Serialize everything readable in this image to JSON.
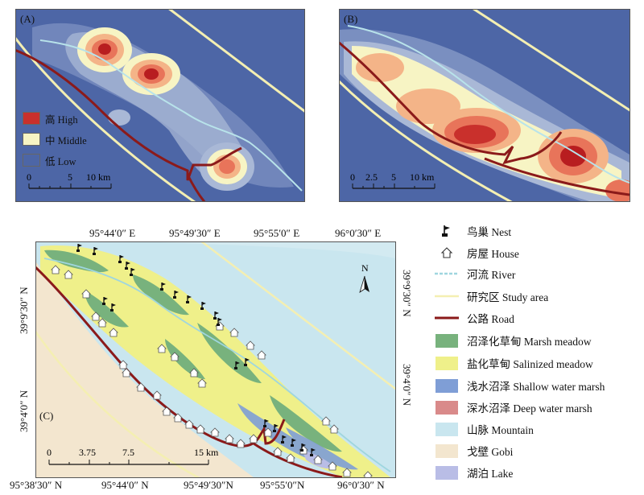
{
  "panels": {
    "a": {
      "label": "(A)",
      "legend": [
        {
          "label": "高 High",
          "color": "#c9302c"
        },
        {
          "label": "中 Middle",
          "color": "#f7f4c4"
        },
        {
          "label": "低 Low",
          "color": "#4d66a6"
        }
      ],
      "scalebar": {
        "ticks": [
          "0",
          "5",
          "10 km"
        ]
      }
    },
    "b": {
      "label": "(B)",
      "scalebar": {
        "ticks": [
          "0",
          "2.5",
          "5",
          "10 km"
        ]
      }
    },
    "c": {
      "label": "(C)",
      "scalebar": {
        "ticks": [
          "0",
          "3.75",
          "7.5",
          "15 km"
        ]
      },
      "north": "N",
      "top_coords": [
        "95°44′0″ E",
        "95°49′30″ E",
        "95°55′0″ E",
        "96°0′30″ E"
      ],
      "bottom_coords": [
        "95°38′30″ N",
        "95°44′0″ N",
        "95°49′30″N",
        "95°55′0″N",
        "96°0′30″ N"
      ],
      "left_coords": [
        "39°9′30″ N",
        "39°4′0″ N"
      ],
      "right_coords": [
        "39°9′30″ N",
        "39°4′0″ N"
      ]
    }
  },
  "legend": [
    {
      "label": "鸟巢 Nest",
      "symbol": "nest-icon"
    },
    {
      "label": "房屋 House",
      "symbol": "house-icon"
    },
    {
      "label": "河流 River",
      "symbol": "river-line",
      "color": "#9fd6df"
    },
    {
      "label": "研究区 Study area",
      "symbol": "study-area-line",
      "color": "#f4efb2"
    },
    {
      "label": "公路 Road",
      "symbol": "road-line",
      "color": "#8b1a1a"
    },
    {
      "label": "沼泽化草甸 Marsh meadow",
      "symbol": "swatch",
      "color": "#78b27d"
    },
    {
      "label": "盐化草甸 Salinized meadow",
      "symbol": "swatch",
      "color": "#eff08a"
    },
    {
      "label": "浅水沼泽 Shallow water marsh",
      "symbol": "swatch",
      "color": "#7f9ed6"
    },
    {
      "label": "深水沼泽 Deep water marsh",
      "symbol": "swatch",
      "color": "#d98a8a"
    },
    {
      "label": "山脉 Mountain",
      "symbol": "swatch",
      "color": "#c9e6ef"
    },
    {
      "label": "戈壁 Gobi",
      "symbol": "swatch",
      "color": "#f3e6cf"
    },
    {
      "label": "湖泊 Lake",
      "symbol": "swatch",
      "color": "#b9bde6"
    }
  ]
}
